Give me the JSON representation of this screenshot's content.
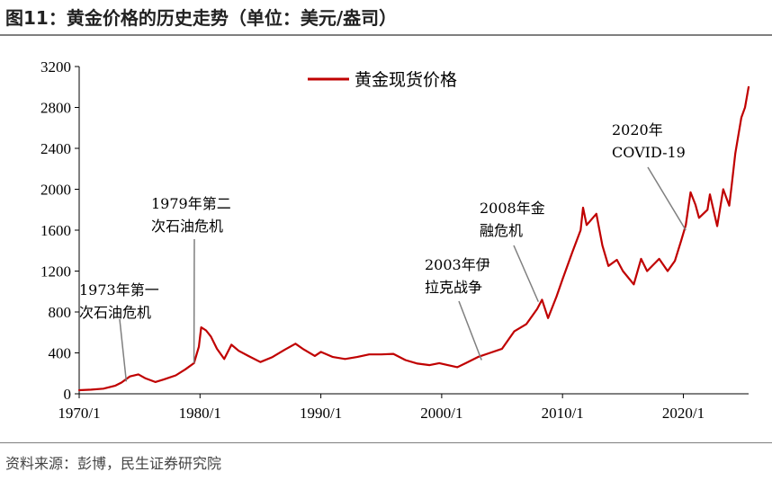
{
  "figure": {
    "title": "图11：黄金价格的历史走势（单位：美元/盎司）",
    "source": "资料来源：彭博，民生证券研究院"
  },
  "chart_data": {
    "type": "line",
    "xlabel": "",
    "ylabel": "",
    "xlim": [
      1970.0,
      2025.4
    ],
    "ylim": [
      0,
      3200
    ],
    "y_ticks": [
      0,
      400,
      800,
      1200,
      1600,
      2000,
      2400,
      2800,
      3200
    ],
    "x_ticks": [
      {
        "label": "1970/1",
        "value": 1970
      },
      {
        "label": "1980/1",
        "value": 1980
      },
      {
        "label": "1990/1",
        "value": 1990
      },
      {
        "label": "2000/1",
        "value": 2000
      },
      {
        "label": "2010/1",
        "value": 2010
      },
      {
        "label": "2020/1",
        "value": 2020
      }
    ],
    "grid": false,
    "legend": {
      "position": "top-center"
    },
    "series": [
      {
        "name": "黄金现货价格",
        "color": "#c00000",
        "points": [
          [
            1970.0,
            35
          ],
          [
            1971.0,
            40
          ],
          [
            1972.0,
            50
          ],
          [
            1973.0,
            80
          ],
          [
            1973.5,
            110
          ],
          [
            1974.2,
            170
          ],
          [
            1974.9,
            190
          ],
          [
            1975.5,
            150
          ],
          [
            1976.3,
            115
          ],
          [
            1977.0,
            140
          ],
          [
            1978.0,
            180
          ],
          [
            1978.8,
            240
          ],
          [
            1979.5,
            300
          ],
          [
            1979.9,
            460
          ],
          [
            1980.1,
            650
          ],
          [
            1980.5,
            620
          ],
          [
            1980.9,
            560
          ],
          [
            1981.4,
            440
          ],
          [
            1982.0,
            340
          ],
          [
            1982.6,
            480
          ],
          [
            1983.2,
            420
          ],
          [
            1984.0,
            370
          ],
          [
            1985.0,
            310
          ],
          [
            1986.0,
            360
          ],
          [
            1987.0,
            430
          ],
          [
            1987.9,
            490
          ],
          [
            1988.5,
            440
          ],
          [
            1989.5,
            370
          ],
          [
            1990.0,
            410
          ],
          [
            1991.0,
            360
          ],
          [
            1992.0,
            340
          ],
          [
            1993.0,
            360
          ],
          [
            1994.0,
            385
          ],
          [
            1995.0,
            385
          ],
          [
            1996.0,
            390
          ],
          [
            1997.0,
            330
          ],
          [
            1998.0,
            295
          ],
          [
            1999.0,
            280
          ],
          [
            1999.8,
            300
          ],
          [
            2000.5,
            280
          ],
          [
            2001.3,
            260
          ],
          [
            2002.0,
            300
          ],
          [
            2003.0,
            360
          ],
          [
            2004.0,
            400
          ],
          [
            2005.0,
            440
          ],
          [
            2006.0,
            610
          ],
          [
            2007.0,
            680
          ],
          [
            2007.9,
            830
          ],
          [
            2008.3,
            920
          ],
          [
            2008.8,
            740
          ],
          [
            2009.5,
            950
          ],
          [
            2010.0,
            1120
          ],
          [
            2010.8,
            1380
          ],
          [
            2011.5,
            1600
          ],
          [
            2011.7,
            1820
          ],
          [
            2012.0,
            1650
          ],
          [
            2012.8,
            1760
          ],
          [
            2013.3,
            1450
          ],
          [
            2013.8,
            1250
          ],
          [
            2014.5,
            1310
          ],
          [
            2015.0,
            1200
          ],
          [
            2015.9,
            1070
          ],
          [
            2016.5,
            1320
          ],
          [
            2017.0,
            1200
          ],
          [
            2018.0,
            1320
          ],
          [
            2018.7,
            1200
          ],
          [
            2019.3,
            1300
          ],
          [
            2019.8,
            1490
          ],
          [
            2020.2,
            1650
          ],
          [
            2020.6,
            1970
          ],
          [
            2021.0,
            1850
          ],
          [
            2021.3,
            1720
          ],
          [
            2022.0,
            1800
          ],
          [
            2022.2,
            1950
          ],
          [
            2022.8,
            1640
          ],
          [
            2023.3,
            2000
          ],
          [
            2023.8,
            1840
          ],
          [
            2024.0,
            2040
          ],
          [
            2024.3,
            2350
          ],
          [
            2024.8,
            2700
          ],
          [
            2025.1,
            2800
          ],
          [
            2025.4,
            3000
          ]
        ]
      }
    ],
    "annotations": [
      {
        "lines": [
          "1973年第一",
          "次石油危机"
        ],
        "x": 1973.9,
        "y": 120
      },
      {
        "lines": [
          "1979年第二",
          "次石油危机"
        ],
        "x": 1979.5,
        "y": 300
      },
      {
        "lines": [
          "2003年伊",
          "拉克战争"
        ],
        "x": 2003.3,
        "y": 330
      },
      {
        "lines": [
          "2008年金",
          "融危机"
        ],
        "x": 2008.0,
        "y": 900
      },
      {
        "lines": [
          "2020年",
          "COVID-19"
        ],
        "x": 2020.2,
        "y": 1600
      }
    ]
  }
}
